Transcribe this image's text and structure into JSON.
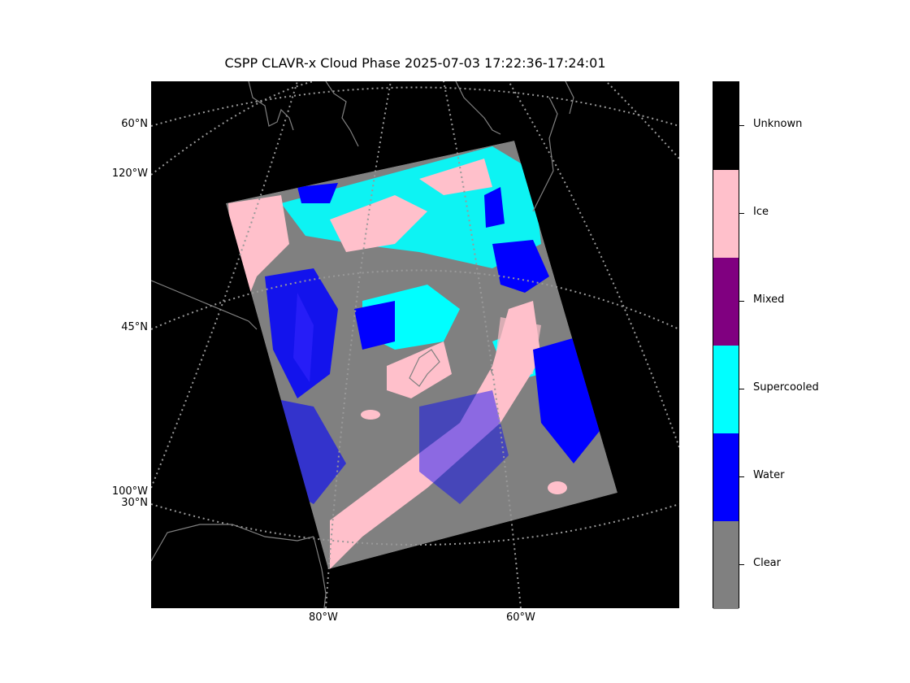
{
  "title": "CSPP CLAVR-x Cloud Phase 2025-07-03 17:22:36-17:24:01",
  "lat_labels": [
    "60°N",
    "45°N",
    "30°N"
  ],
  "lon_side_labels": [
    "120°W",
    "100°W"
  ],
  "lon_bottom_labels": [
    "80°W",
    "60°W"
  ],
  "colorbar": [
    {
      "label": "Clear",
      "color": "#808080"
    },
    {
      "label": "Water",
      "color": "#0000ff"
    },
    {
      "label": "Supercooled",
      "color": "#00ffff"
    },
    {
      "label": "Mixed",
      "color": "#800080"
    },
    {
      "label": "Ice",
      "color": "#ffc0cb"
    },
    {
      "label": "Unknown",
      "color": "#000000"
    }
  ],
  "colors": {
    "background": "#000000",
    "grid": "#999999",
    "coast": "#808080"
  }
}
